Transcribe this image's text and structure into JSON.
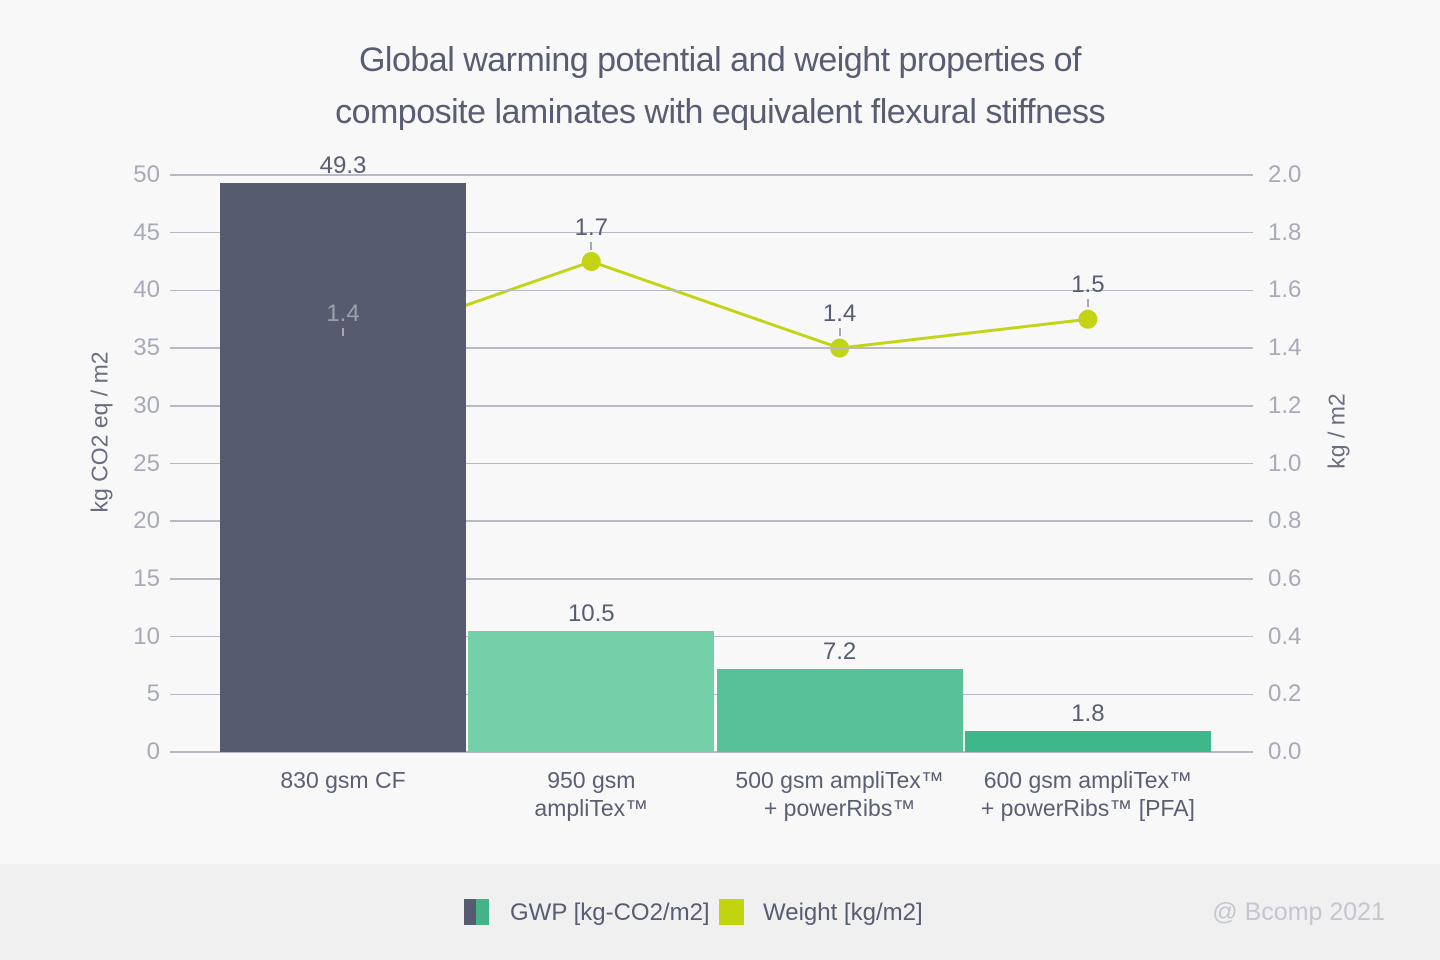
{
  "title_lines": [
    "Global warming potential and weight properties of",
    "composite laminates with equivalent flexural stiffness"
  ],
  "credit": "@ Bcomp 2021",
  "legend": {
    "gwp_label": "GWP [kg-CO2/m2]",
    "weight_label": "Weight [kg/m2]"
  },
  "colors": {
    "background": "#f8f8f9",
    "footer_background": "#f0f0f1",
    "gridline": "#b7b9c3",
    "title_text": "#585d72",
    "tick_text": "#a8abb7",
    "axis_label_text": "#6a6e7f",
    "credit_text": "#c5c7d0",
    "line": "#c3d416",
    "legend_weight_swatch": "#c2d40e",
    "legend_gwp_swatch": [
      "#565b6f",
      "#44b389"
    ]
  },
  "chart_data": {
    "type": "bar",
    "title": "Global warming potential and weight properties of composite laminates with equivalent flexural stiffness",
    "categories": [
      [
        "830 gsm CF"
      ],
      [
        "950 gsm",
        "ampliTex™"
      ],
      [
        "500 gsm ampliTex™",
        "+ powerRibs™"
      ],
      [
        "600 gsm ampliTex™",
        "+ powerRibs™ [PFA]"
      ]
    ],
    "series": [
      {
        "name": "GWP [kg-CO2/m2]",
        "type": "bar",
        "axis": "left",
        "values": [
          49.3,
          10.5,
          7.2,
          1.8
        ],
        "colors": [
          "#565b6f",
          "#73cfa7",
          "#57c298",
          "#3eb88a"
        ]
      },
      {
        "name": "Weight [kg/m2]",
        "type": "line",
        "axis": "right",
        "values": [
          1.4,
          1.7,
          1.4,
          1.5
        ],
        "color": "#c3d416",
        "value_label_colors": [
          "#9aa0ad",
          "#585d72",
          "#585d72",
          "#585d72"
        ]
      }
    ],
    "left_axis": {
      "label": "kg CO2 eq / m2",
      "min": 0,
      "max": 50,
      "step": 5
    },
    "right_axis": {
      "label": "kg / m2",
      "min": 0.0,
      "max": 2.0,
      "step": 0.2
    },
    "grid": true,
    "legend_position": "bottom"
  }
}
